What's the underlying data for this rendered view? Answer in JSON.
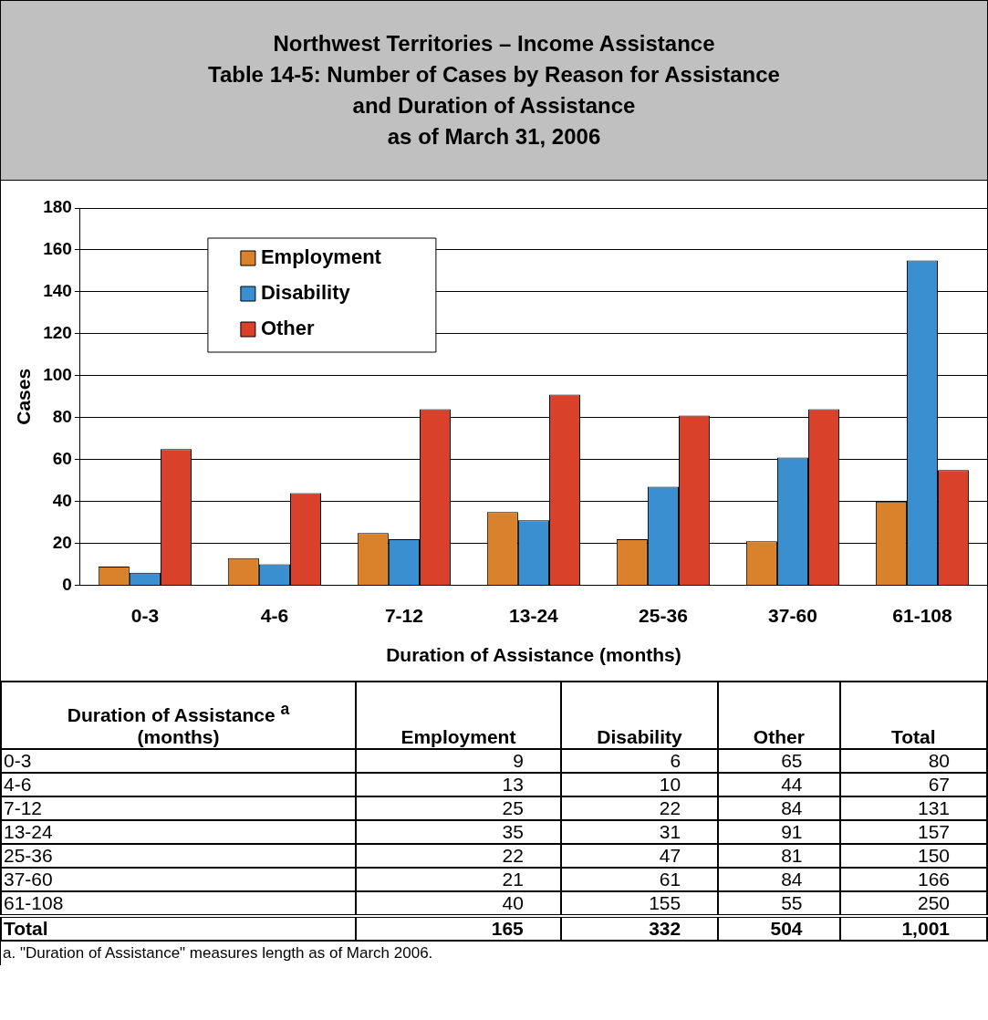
{
  "chart_data": [
    {
      "type": "bar",
      "title": "Northwest Territories – Income Assistance\nTable 14-5: Number of Cases by Reason for Assistance\nand Duration of Assistance\nas of March 31, 2006",
      "xlabel": "Duration of Assistance (months)",
      "ylabel": "Cases",
      "categories": [
        "0-3",
        "4-6",
        "7-12",
        "13-24",
        "25-36",
        "37-60",
        "61-108"
      ],
      "series": [
        {
          "name": "Employment",
          "color": "#d9822b",
          "values": [
            9,
            13,
            25,
            35,
            22,
            21,
            40
          ]
        },
        {
          "name": "Disability",
          "color": "#3a8fd0",
          "values": [
            6,
            10,
            22,
            31,
            47,
            61,
            155
          ]
        },
        {
          "name": "Other",
          "color": "#d9412b",
          "values": [
            65,
            44,
            84,
            91,
            81,
            84,
            55
          ]
        }
      ],
      "ylim": [
        0,
        180
      ],
      "yticks": [
        0,
        20,
        40,
        60,
        80,
        100,
        120,
        140,
        160,
        180
      ],
      "grid": "y",
      "legend": "top left"
    },
    {
      "type": "other",
      "annotations": [
        "Duration of Assistance $^{a}$\n(months)",
        "Employment",
        "Disability",
        "Other",
        "Total",
        "0-3",
        "9",
        "6",
        "65",
        "80",
        "4-6",
        "13",
        "10",
        "44",
        "67",
        "7-12",
        "25",
        "22",
        "84",
        "131",
        "13-24",
        "35",
        "31",
        "91",
        "157",
        "25-36",
        "22",
        "47",
        "81",
        "150",
        "37-60",
        "21",
        "61",
        "84",
        "166",
        "61-108",
        "40",
        "155",
        "55",
        "250",
        "Total",
        "165",
        "332",
        "504",
        "1,001",
        "a. \"Duration of Assistance\" measures length as of March 2006."
      ]
    }
  ]
}
